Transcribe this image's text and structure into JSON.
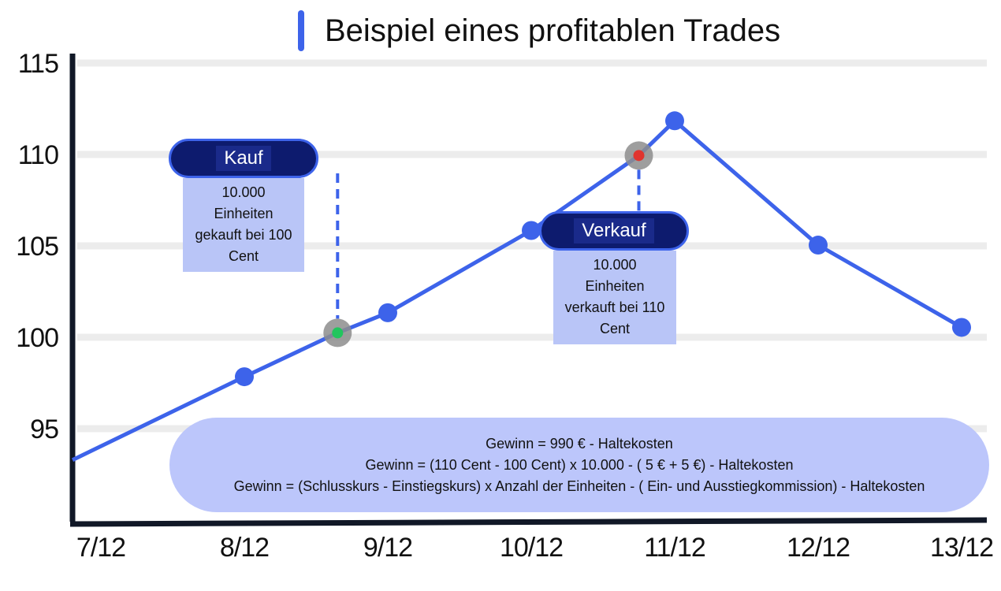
{
  "title": "Beispiel eines profitablen Trades",
  "colors": {
    "accent": "#3d63ea",
    "pill_bg": "#0d1b6e",
    "note_bg": "#b9c5f7",
    "buy_marker": "#22c55e",
    "sell_marker": "#e0342f",
    "marker_halo": "#8d8d8d",
    "gridline": "#ececec",
    "axis": "#111827"
  },
  "annotations": {
    "buy": {
      "label": "Kauf",
      "text": [
        "10.000",
        "Einheiten",
        "gekauft bei 100",
        "Cent"
      ]
    },
    "sell": {
      "label": "Verkauf",
      "text": [
        "10.000",
        "Einheiten",
        "verkauft bei 110",
        "Cent"
      ]
    }
  },
  "formula_lines": [
    "Gewinn = 990 € - Haltekosten",
    "Gewinn = (110 Cent - 100 Cent) x 10.000 - ( 5 € + 5 €) - Haltekosten",
    "Gewinn = (Schlusskurs - Einstiegskurs) x Anzahl der Einheiten - ( Ein- und Ausstiegkommission) - Haltekosten"
  ],
  "chart_data": {
    "type": "line",
    "title": "Beispiel eines profitablen Trades",
    "xlabel": "",
    "ylabel": "",
    "x_ticks": [
      "7/12",
      "8/12",
      "9/12",
      "10/12",
      "11/12",
      "12/12",
      "13/12"
    ],
    "y_ticks": [
      "115",
      "110",
      "105",
      "100",
      "95"
    ],
    "ylim": [
      90.5,
      116
    ],
    "grid": true,
    "series": [
      {
        "points": [
          {
            "x": 7.0,
            "y": 94.3
          },
          {
            "x": 8.0,
            "y": 98.1
          },
          {
            "x": 8.65,
            "y": 100.5
          },
          {
            "x": 9.0,
            "y": 101.6
          },
          {
            "x": 10.0,
            "y": 106.1
          },
          {
            "x": 10.75,
            "y": 110.2
          },
          {
            "x": 11.0,
            "y": 112.1
          },
          {
            "x": 12.0,
            "y": 105.3
          },
          {
            "x": 13.0,
            "y": 100.8
          }
        ]
      }
    ],
    "markers": [
      {
        "kind": "buy",
        "x": 8.65,
        "y": 100.5
      },
      {
        "kind": "sell",
        "x": 10.75,
        "y": 110.2
      }
    ]
  }
}
